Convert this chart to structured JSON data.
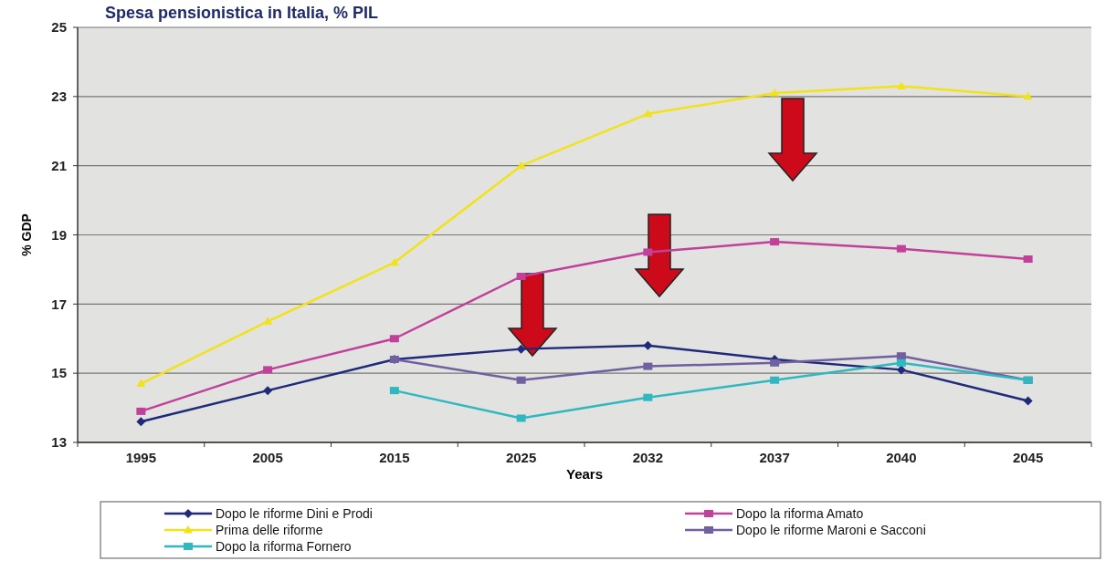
{
  "chart_data": {
    "type": "line",
    "title": "Spesa pensionistica in Italia, % PIL",
    "xlabel": "Years",
    "ylabel": "% GDP",
    "categories": [
      "1995",
      "2005",
      "2015",
      "2025",
      "2032",
      "2037",
      "2040",
      "2045"
    ],
    "series": [
      {
        "name": "Dopo le riforme Dini e Prodi",
        "color": "#1f2a7a",
        "marker": "diamond",
        "values": [
          13.6,
          14.5,
          15.4,
          15.7,
          15.8,
          15.4,
          15.1,
          14.2
        ]
      },
      {
        "name": "Dopo la riforma Amato",
        "color": "#c0409a",
        "marker": "square",
        "values": [
          13.9,
          15.1,
          16.0,
          17.8,
          18.5,
          18.8,
          18.6,
          18.3
        ]
      },
      {
        "name": "Prima delle riforme",
        "color": "#f2e21a",
        "marker": "triangle",
        "values": [
          14.7,
          16.5,
          18.2,
          21.0,
          22.5,
          23.1,
          23.3,
          23.0
        ]
      },
      {
        "name": "Dopo le riforme Maroni e Sacconi",
        "color": "#7060a0",
        "marker": "square",
        "values": [
          null,
          null,
          15.4,
          14.8,
          15.2,
          15.3,
          15.5,
          14.8
        ]
      },
      {
        "name": "Dopo la riforma Fornero",
        "color": "#30b8c0",
        "marker": "square",
        "values": [
          null,
          null,
          14.5,
          13.7,
          14.3,
          14.8,
          15.3,
          14.8
        ]
      }
    ],
    "ylim": [
      13,
      25
    ],
    "yticks": [
      13,
      15,
      17,
      19,
      21,
      23,
      25
    ],
    "grid": "y",
    "legend": "bottom",
    "line_style": "solid"
  }
}
